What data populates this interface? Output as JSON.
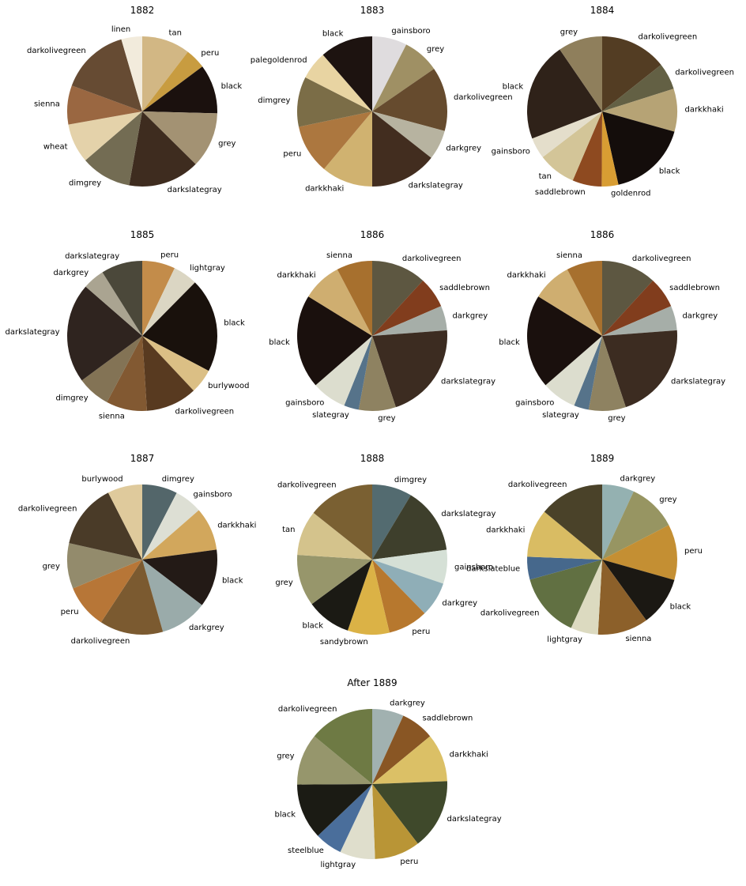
{
  "chart_data": [
    {
      "type": "pie",
      "title": "1882",
      "slices": [
        {
          "label": "tan",
          "value": 10.4,
          "color": "#d2b784"
        },
        {
          "label": "peru",
          "value": 4.4,
          "color": "#c89c40"
        },
        {
          "label": "black",
          "value": 10.6,
          "color": "#1b110e"
        },
        {
          "label": "grey",
          "value": 12.0,
          "color": "#a39273"
        },
        {
          "label": "darkslategray",
          "value": 15.4,
          "color": "#3e2c1f"
        },
        {
          "label": "dimgrey",
          "value": 10.9,
          "color": "#736c53"
        },
        {
          "label": "wheat",
          "value": 8.5,
          "color": "#e4d2aa"
        },
        {
          "label": "sienna",
          "value": 8.4,
          "color": "#9a6741"
        },
        {
          "label": "darkolivegreen",
          "value": 14.9,
          "color": "#664b33"
        },
        {
          "label": "linen",
          "value": 4.5,
          "color": "#f2ebdc"
        }
      ]
    },
    {
      "type": "pie",
      "title": "1883",
      "slices": [
        {
          "label": "gainsboro",
          "value": 7.5,
          "color": "#dfdcde"
        },
        {
          "label": "grey",
          "value": 7.9,
          "color": "#9f9064"
        },
        {
          "label": "darkolivegreen",
          "value": 13.8,
          "color": "#664b2e"
        },
        {
          "label": "darkgrey",
          "value": 6.4,
          "color": "#b7b3a0"
        },
        {
          "label": "darkslategray",
          "value": 14.4,
          "color": "#422d1f"
        },
        {
          "label": "darkkhaki",
          "value": 11.1,
          "color": "#d0b270"
        },
        {
          "label": "peru",
          "value": 10.6,
          "color": "#ac773f"
        },
        {
          "label": "dimgrey",
          "value": 10.8,
          "color": "#7b6d47"
        },
        {
          "label": "palegoldenrod",
          "value": 6.1,
          "color": "#e8d4a2"
        },
        {
          "label": "black",
          "value": 11.4,
          "color": "#1d1310"
        }
      ]
    },
    {
      "type": "pie",
      "title": "1884",
      "slices": [
        {
          "label": "darkolivegreen",
          "value": 13.2,
          "color": "#533d23"
        },
        {
          "label": "darkolivegreen",
          "value": 5.3,
          "color": "#636044"
        },
        {
          "label": "darkkhaki",
          "value": 8.5,
          "color": "#b6a375"
        },
        {
          "label": "black",
          "value": 15.8,
          "color": "#140d0b"
        },
        {
          "label": "goldenrod",
          "value": 3.3,
          "color": "#d89d33"
        },
        {
          "label": "saddlebrown",
          "value": 5.8,
          "color": "#8e4a20"
        },
        {
          "label": "tan",
          "value": 7.5,
          "color": "#d3c598"
        },
        {
          "label": "gainsboro",
          "value": 4.2,
          "color": "#e4decb"
        },
        {
          "label": "black",
          "value": 19.6,
          "color": "#2f2219"
        },
        {
          "label": "grey",
          "value": 8.8,
          "color": "#8f7f5c"
        }
      ]
    },
    {
      "type": "pie",
      "title": "1885",
      "slices": [
        {
          "label": "peru",
          "value": 7.1,
          "color": "#c38c4a"
        },
        {
          "label": "lightgray",
          "value": 5.3,
          "color": "#dbd6c3"
        },
        {
          "label": "black",
          "value": 20.3,
          "color": "#19110c"
        },
        {
          "label": "burlywood",
          "value": 5.3,
          "color": "#dbbf85"
        },
        {
          "label": "darkolivegreen",
          "value": 11.0,
          "color": "#583a20"
        },
        {
          "label": "sienna",
          "value": 8.8,
          "color": "#825932"
        },
        {
          "label": "dimgrey",
          "value": 7.1,
          "color": "#837355"
        },
        {
          "label": "darkslategray",
          "value": 21.5,
          "color": "#2f241f"
        },
        {
          "label": "darkgrey",
          "value": 4.7,
          "color": "#aaa491"
        },
        {
          "label": "darkslategray",
          "value": 8.9,
          "color": "#4b483a"
        }
      ]
    },
    {
      "type": "pie",
      "title": "1886",
      "slices": [
        {
          "label": "darkolivegreen",
          "value": 11.8,
          "color": "#5d5741"
        },
        {
          "label": "saddlebrown",
          "value": 6.7,
          "color": "#813d1d"
        },
        {
          "label": "darkgrey",
          "value": 5.3,
          "color": "#a6aea8"
        },
        {
          "label": "darkslategray",
          "value": 21.1,
          "color": "#3c2c21"
        },
        {
          "label": "grey",
          "value": 8.0,
          "color": "#8e8261"
        },
        {
          "label": "slategray",
          "value": 3.2,
          "color": "#56738a"
        },
        {
          "label": "gainsboro",
          "value": 7.5,
          "color": "#dcddce"
        },
        {
          "label": "black",
          "value": 20.2,
          "color": "#1a100d"
        },
        {
          "label": "darkkhaki",
          "value": 8.5,
          "color": "#cfae70"
        },
        {
          "label": "sienna",
          "value": 7.7,
          "color": "#a7702e"
        }
      ]
    },
    {
      "type": "pie",
      "title": "1886",
      "slices": [
        {
          "label": "darkolivegreen",
          "value": 11.8,
          "color": "#5d5741"
        },
        {
          "label": "saddlebrown",
          "value": 6.7,
          "color": "#813d1d"
        },
        {
          "label": "darkgrey",
          "value": 5.3,
          "color": "#a6aea8"
        },
        {
          "label": "darkslategray",
          "value": 21.1,
          "color": "#3c2c21"
        },
        {
          "label": "grey",
          "value": 8.0,
          "color": "#8e8261"
        },
        {
          "label": "slategray",
          "value": 3.2,
          "color": "#56738a"
        },
        {
          "label": "gainsboro",
          "value": 7.5,
          "color": "#dcddce"
        },
        {
          "label": "black",
          "value": 20.2,
          "color": "#1a100d"
        },
        {
          "label": "darkkhaki",
          "value": 8.5,
          "color": "#cfae70"
        },
        {
          "label": "sienna",
          "value": 7.7,
          "color": "#a7702e"
        }
      ]
    },
    {
      "type": "pie",
      "title": "1887",
      "slices": [
        {
          "label": "dimgrey",
          "value": 7.6,
          "color": "#53666a"
        },
        {
          "label": "gainsboro",
          "value": 6.0,
          "color": "#dddfd4"
        },
        {
          "label": "darkkhaki",
          "value": 9.3,
          "color": "#d2a75c"
        },
        {
          "label": "black",
          "value": 12.5,
          "color": "#231a16"
        },
        {
          "label": "darkgrey",
          "value": 10.2,
          "color": "#9aabaa"
        },
        {
          "label": "darkolivegreen",
          "value": 13.7,
          "color": "#7b5a30"
        },
        {
          "label": "peru",
          "value": 9.5,
          "color": "#b77637"
        },
        {
          "label": "grey",
          "value": 9.8,
          "color": "#938b6c"
        },
        {
          "label": "darkolivegreen",
          "value": 14.0,
          "color": "#4a3b28"
        },
        {
          "label": "burlywood",
          "value": 7.5,
          "color": "#dfca9c"
        }
      ]
    },
    {
      "type": "pie",
      "title": "1888",
      "slices": [
        {
          "label": "dimgrey",
          "value": 8.6,
          "color": "#536b70"
        },
        {
          "label": "darkslategray",
          "value": 14.3,
          "color": "#3e3f2c"
        },
        {
          "label": "gainsboro",
          "value": 7.3,
          "color": "#d5e0d6"
        },
        {
          "label": "darkgrey",
          "value": 7.5,
          "color": "#8faeb7"
        },
        {
          "label": "peru",
          "value": 8.6,
          "color": "#b7782e"
        },
        {
          "label": "sandybrown",
          "value": 9.0,
          "color": "#dbb246"
        },
        {
          "label": "black",
          "value": 9.6,
          "color": "#1b1a14"
        },
        {
          "label": "grey",
          "value": 11.1,
          "color": "#97966b"
        },
        {
          "label": "tan",
          "value": 9.7,
          "color": "#d4c38c"
        },
        {
          "label": "darkolivegreen",
          "value": 14.3,
          "color": "#7a6032"
        }
      ]
    },
    {
      "type": "pie",
      "title": "1889",
      "slices": [
        {
          "label": "darkgrey",
          "value": 6.9,
          "color": "#94b1b1"
        },
        {
          "label": "grey",
          "value": 10.5,
          "color": "#979562"
        },
        {
          "label": "peru",
          "value": 12.0,
          "color": "#c48f33"
        },
        {
          "label": "black",
          "value": 10.6,
          "color": "#1b1813"
        },
        {
          "label": "sienna",
          "value": 10.9,
          "color": "#8c602a"
        },
        {
          "label": "lightgray",
          "value": 5.9,
          "color": "#dcdac0"
        },
        {
          "label": "darkolivegreen",
          "value": 13.9,
          "color": "#617042"
        },
        {
          "label": "darkslateblue",
          "value": 4.9,
          "color": "#46688c"
        },
        {
          "label": "darkkhaki",
          "value": 10.4,
          "color": "#d9bc63"
        },
        {
          "label": "darkolivegreen",
          "value": 14.0,
          "color": "#4a4229"
        }
      ]
    },
    {
      "type": "pie",
      "title": "After 1889",
      "slices": [
        {
          "label": "darkgrey",
          "value": 6.8,
          "color": "#a1b1b0"
        },
        {
          "label": "saddlebrown",
          "value": 7.2,
          "color": "#895624"
        },
        {
          "label": "darkkhaki",
          "value": 10.4,
          "color": "#dbc066"
        },
        {
          "label": "darkslategray",
          "value": 15.2,
          "color": "#3f492b"
        },
        {
          "label": "peru",
          "value": 9.8,
          "color": "#b99536"
        },
        {
          "label": "lightgray",
          "value": 7.6,
          "color": "#dfdecc"
        },
        {
          "label": "steelblue",
          "value": 5.9,
          "color": "#4a6e9b"
        },
        {
          "label": "black",
          "value": 12.0,
          "color": "#1b1b14"
        },
        {
          "label": "grey",
          "value": 11.1,
          "color": "#96966c"
        },
        {
          "label": "darkolivegreen",
          "value": 14.0,
          "color": "#6e7a44"
        }
      ]
    }
  ]
}
